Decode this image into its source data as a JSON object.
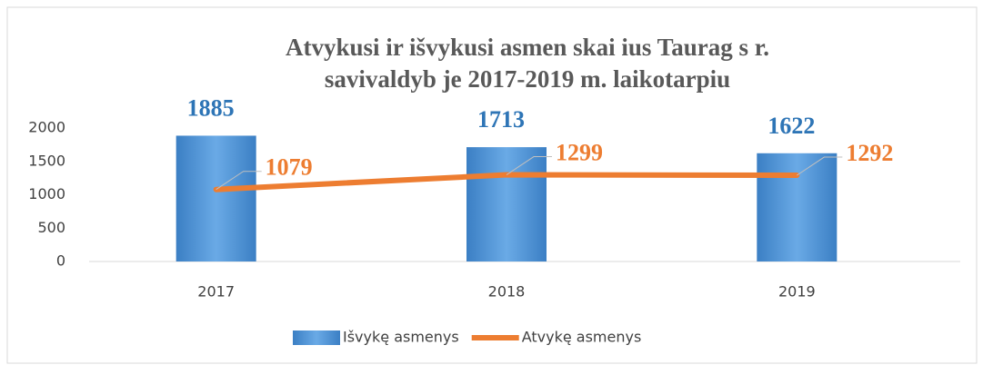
{
  "chart_data": {
    "type": "bar_line",
    "title": [
      "Atvykusi   ir išvykusi   asmen   skai  ius Taurag  s r.",
      "savivaldyb  je 2017-2019 m. laikotarpiu"
    ],
    "categories": [
      "2017",
      "2018",
      "2019"
    ],
    "series": [
      {
        "name": "Išvykę asmenys",
        "type": "bar",
        "color": "#4a8fd4",
        "values": [
          1885,
          1713,
          1622
        ]
      },
      {
        "name": "Atvykę asmenys",
        "type": "line",
        "color": "#ed7d31",
        "values": [
          1079,
          1299,
          1292
        ]
      }
    ],
    "ylim": [
      0,
      2000
    ],
    "yticks": [
      0,
      500,
      1000,
      1500,
      2000
    ],
    "legend": "bottom"
  }
}
